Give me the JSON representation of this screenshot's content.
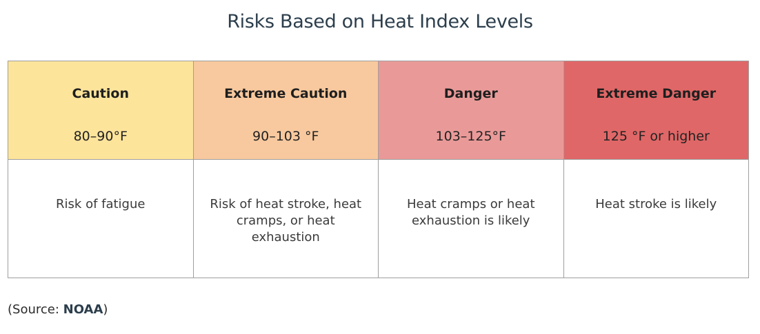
{
  "title": "Risks Based on Heat Index Levels",
  "table": {
    "columns": [
      {
        "level": "Caution",
        "range": "80–90°F",
        "description": "Risk of fatigue",
        "color": "#fde49b"
      },
      {
        "level": "Extreme Caution",
        "range": "90–103 °F",
        "description": "Risk of heat stroke, heat cramps, or heat exhaustion",
        "color": "#f8c99e"
      },
      {
        "level": "Danger",
        "range": "103–125°F",
        "description": "Heat cramps or heat exhaustion is likely",
        "color": "#e99a98"
      },
      {
        "level": "Extreme Danger",
        "range": "125 °F or higher",
        "description": "Heat stroke is likely",
        "color": "#e06767"
      }
    ]
  },
  "source": {
    "prefix": "(Source: ",
    "name": "NOAA",
    "suffix": ")"
  }
}
